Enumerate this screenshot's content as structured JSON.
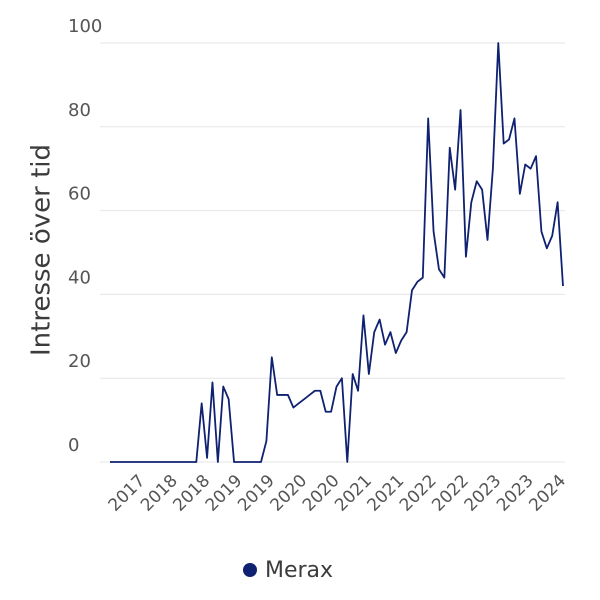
{
  "chart_data": {
    "type": "line",
    "y_label": "Intresse över tid",
    "categories": [
      null,
      null,
      null,
      null,
      null,
      null,
      "2017",
      null,
      null,
      null,
      null,
      null,
      "2018",
      null,
      null,
      null,
      null,
      null,
      "2018",
      null,
      null,
      null,
      null,
      null,
      "2019",
      null,
      null,
      null,
      null,
      null,
      "2019",
      null,
      null,
      null,
      null,
      null,
      "2020",
      null,
      null,
      null,
      null,
      null,
      "2020",
      null,
      null,
      null,
      null,
      null,
      "2021",
      null,
      null,
      null,
      null,
      null,
      "2021",
      null,
      null,
      null,
      null,
      null,
      "2022",
      null,
      null,
      null,
      null,
      null,
      "2022",
      null,
      null,
      null,
      null,
      null,
      "2023",
      null,
      null,
      null,
      null,
      null,
      "2023",
      null,
      null,
      null,
      null,
      null,
      "2024"
    ],
    "series": [
      {
        "name": "Merax",
        "color": "#0f2170",
        "values": [
          0,
          0,
          0,
          0,
          0,
          0,
          0,
          0,
          0,
          0,
          0,
          0,
          0,
          0,
          0,
          0,
          0,
          14,
          1,
          19,
          0,
          18,
          15,
          0,
          0,
          0,
          0,
          0,
          0,
          5,
          25,
          16,
          16,
          16,
          13,
          14,
          15,
          16,
          17,
          17,
          12,
          12,
          18,
          20,
          0,
          21,
          17,
          35,
          21,
          31,
          34,
          28,
          31,
          26,
          29,
          31,
          41,
          43,
          44,
          82,
          55,
          46,
          44,
          75,
          65,
          84,
          49,
          62,
          67,
          65,
          53,
          70,
          100,
          76,
          77,
          82,
          64,
          71,
          70,
          73,
          55,
          51,
          54,
          62,
          42
        ]
      }
    ],
    "ylim": [
      0,
      100
    ],
    "yticks": [
      0,
      20,
      40,
      60,
      80,
      100
    ],
    "grid": true
  }
}
